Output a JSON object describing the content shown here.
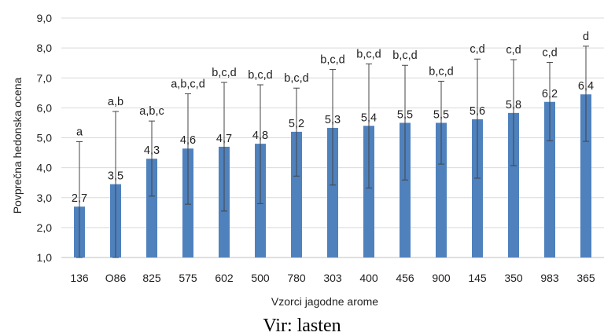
{
  "chart_data": {
    "type": "bar",
    "xlabel": "Vzorci jagodne arome",
    "ylabel": "Povprečna hedonska ocena",
    "ylim": [
      1.0,
      9.0
    ],
    "ytick_step": 1.0,
    "ytick_labels": [
      "1,0",
      "2,0",
      "3,0",
      "4,0",
      "5,0",
      "6,0",
      "7,0",
      "8,0",
      "9,0"
    ],
    "grid": true,
    "legend": "none",
    "bar_color": "#4F81BD",
    "errorbar_color": "#444444",
    "categories": [
      "136",
      "O86",
      "825",
      "575",
      "602",
      "500",
      "780",
      "303",
      "400",
      "456",
      "900",
      "145",
      "350",
      "983",
      "365"
    ],
    "values": [
      2.7,
      3.45,
      4.3,
      4.64,
      4.7,
      4.8,
      5.2,
      5.33,
      5.4,
      5.5,
      5.5,
      5.62,
      5.83,
      6.2,
      6.45
    ],
    "value_labels": [
      "2,7",
      "3,5",
      "4,3",
      "4,6",
      "4,7",
      "4,8",
      "5,2",
      "5,3",
      "5,4",
      "5,5",
      "5,5",
      "5,6",
      "5,8",
      "6,2",
      "6,4"
    ],
    "error_upper": [
      4.87,
      5.88,
      5.56,
      6.47,
      6.85,
      6.77,
      6.66,
      7.28,
      7.47,
      7.42,
      6.89,
      7.63,
      7.61,
      7.52,
      8.06
    ],
    "error_lower": [
      1.0,
      1.0,
      3.05,
      2.78,
      2.55,
      2.8,
      3.72,
      3.42,
      3.32,
      3.59,
      4.12,
      3.65,
      4.07,
      4.9,
      4.88
    ],
    "significance_labels": [
      "a",
      "a,b",
      "a,b,c",
      "a,b,c,d",
      "b,c,d",
      "b,c,d",
      "b,c,d",
      "b,c,d",
      "b,c,d",
      "b,c,d",
      "b,c,d",
      "c,d",
      "c,d",
      "c,d",
      "d"
    ]
  },
  "source_note": "Vir: lasten"
}
